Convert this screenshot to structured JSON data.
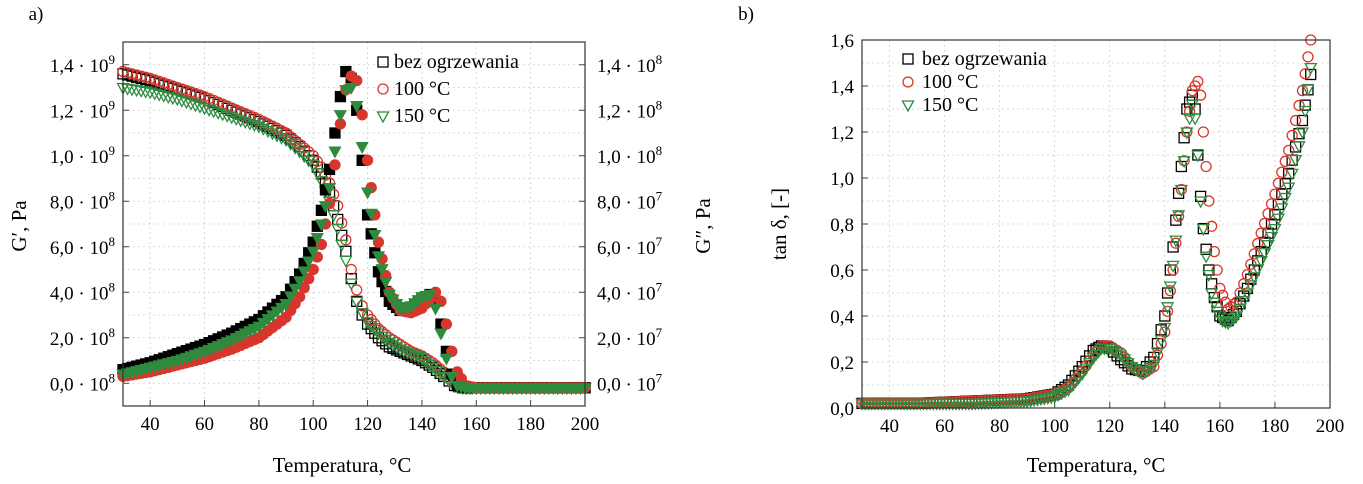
{
  "chart_data": [
    {
      "panel_label": "a)",
      "type": "scatter",
      "xlabel": "Temperatura, °C",
      "ylabel": "G′, Pa",
      "y2label": "G″, Pa",
      "xlim": [
        30,
        200
      ],
      "xticks": [
        40,
        60,
        80,
        100,
        120,
        140,
        160,
        180,
        200
      ],
      "ylim": [
        -100000000.0,
        1500000000.0
      ],
      "yticks": [
        0,
        200000000.0,
        400000000.0,
        600000000.0,
        800000000.0,
        1000000000.0,
        1200000000.0,
        1400000000.0
      ],
      "ytick_labels": [
        {
          "m": "0,0 · 10",
          "e": "8"
        },
        {
          "m": "2,0 · 10",
          "e": "8"
        },
        {
          "m": "4,0 · 10",
          "e": "8"
        },
        {
          "m": "6,0 · 10",
          "e": "8"
        },
        {
          "m": "8,0 · 10",
          "e": "8"
        },
        {
          "m": "1,0 · 10",
          "e": "9"
        },
        {
          "m": "1,2 · 10",
          "e": "9"
        },
        {
          "m": "1,4 · 10",
          "e": "9"
        }
      ],
      "y2lim": [
        -10000000.0,
        150000000.0
      ],
      "y2ticks": [
        0,
        20000000.0,
        40000000.0,
        60000000.0,
        80000000.0,
        100000000.0,
        120000000.0,
        140000000.0
      ],
      "y2tick_labels": [
        {
          "m": "0,0 · 10",
          "e": "7"
        },
        {
          "m": "2,0 · 10",
          "e": "7"
        },
        {
          "m": "4,0 · 10",
          "e": "7"
        },
        {
          "m": "6,0 · 10",
          "e": "7"
        },
        {
          "m": "8,0 · 10",
          "e": "7"
        },
        {
          "m": "1,0 · 10",
          "e": "8"
        },
        {
          "m": "1,2 · 10",
          "e": "8"
        },
        {
          "m": "1,4 · 10",
          "e": "8"
        }
      ],
      "grid": true,
      "legend": "top-right",
      "series": [
        {
          "name": "bez ogrzewania",
          "color": "#000000",
          "marker": "square",
          "storage_G1": {
            "x": [
              30,
              40,
              50,
              60,
              70,
              80,
              90,
              95,
              100,
              103,
              106,
              109,
              112,
              114,
              116,
              118,
              120,
              124,
              128,
              132,
              136,
              140,
              144,
              148,
              150,
              152,
              155,
              158,
              160,
              170,
              180,
              190,
              200
            ],
            "y": [
              1360000000.0,
              1330000000.0,
              1290000000.0,
              1250000000.0,
              1200000000.0,
              1150000000.0,
              1090000000.0,
              1040000000.0,
              980000000.0,
              920000000.0,
              840000000.0,
              720000000.0,
              580000000.0,
              460000000.0,
              360000000.0,
              300000000.0,
              260000000.0,
              200000000.0,
              160000000.0,
              140000000.0,
              120000000.0,
              100000000.0,
              70000000.0,
              30000000.0,
              10000000.0,
              -10000000.0,
              -20000000.0,
              -20000000.0,
              -20000000.0,
              -20000000.0,
              -20000000.0,
              -20000000.0,
              -20000000.0
            ]
          },
          "loss_G2": {
            "x": [
              30,
              40,
              50,
              60,
              70,
              80,
              90,
              95,
              100,
              103,
              106,
              108,
              110,
              112,
              114,
              116,
              118,
              120,
              124,
              128,
              132,
              136,
              140,
              143,
              145,
              147,
              149,
              151,
              153,
              156,
              160,
              170,
              180,
              190,
              200
            ],
            "y": [
              6000000.0,
              9000000.0,
              13000000.0,
              17000000.0,
              22000000.0,
              28000000.0,
              38000000.0,
              48000000.0,
              62000000.0,
              76000000.0,
              94000000.0,
              110000000.0,
              126000000.0,
              137000000.0,
              134000000.0,
              120000000.0,
              98000000.0,
              74000000.0,
              49000000.0,
              36000000.0,
              32000000.0,
              33000000.0,
              37000000.0,
              39000000.0,
              36000000.0,
              26000000.0,
              14000000.0,
              4000000.0,
              -1000000.0,
              -2000000.0,
              -2000000.0,
              -2000000.0,
              -2000000.0,
              -2000000.0,
              -2000000.0
            ]
          }
        },
        {
          "name": "100 °C",
          "color": "#d8362c",
          "marker": "circle",
          "storage_G1": {
            "x": [
              30,
              40,
              50,
              60,
              70,
              80,
              90,
              95,
              100,
              103,
              106,
              109,
              112,
              114,
              116,
              118,
              120,
              124,
              128,
              132,
              136,
              140,
              144,
              148,
              150,
              152,
              155,
              158,
              160,
              170,
              180,
              190,
              200
            ],
            "y": [
              1370000000.0,
              1340000000.0,
              1300000000.0,
              1260000000.0,
              1210000000.0,
              1160000000.0,
              1100000000.0,
              1050000000.0,
              1000000000.0,
              950000000.0,
              880000000.0,
              780000000.0,
              630000000.0,
              500000000.0,
              410000000.0,
              340000000.0,
              300000000.0,
              240000000.0,
              200000000.0,
              170000000.0,
              140000000.0,
              120000000.0,
              90000000.0,
              50000000.0,
              20000000.0,
              0.0,
              -20000000.0,
              -20000000.0,
              -20000000.0,
              -20000000.0,
              -20000000.0,
              -20000000.0,
              -20000000.0
            ]
          },
          "loss_G2": {
            "x": [
              30,
              40,
              50,
              60,
              70,
              80,
              90,
              95,
              100,
              103,
              106,
              108,
              110,
              112,
              114,
              116,
              118,
              120,
              124,
              128,
              132,
              136,
              140,
              143,
              145,
              147,
              149,
              151,
              153,
              156,
              160,
              170,
              180,
              190,
              200
            ],
            "y": [
              3000000.0,
              5000000.0,
              8000000.0,
              11000000.0,
              15000000.0,
              20000000.0,
              29000000.0,
              38000000.0,
              50000000.0,
              61000000.0,
              79000000.0,
              96000000.0,
              114000000.0,
              129000000.0,
              135000000.0,
              133000000.0,
              118000000.0,
              98000000.0,
              62000000.0,
              40000000.0,
              32000000.0,
              31000000.0,
              33000000.0,
              37000000.0,
              40000000.0,
              36000000.0,
              26000000.0,
              14000000.0,
              5000000.0,
              -1000000.0,
              -2000000.0,
              -2000000.0,
              -2000000.0,
              -2000000.0,
              -2000000.0
            ]
          }
        },
        {
          "name": "150 °C",
          "color": "#2e8b3e",
          "marker": "triangle",
          "storage_G1": {
            "x": [
              30,
              40,
              50,
              60,
              70,
              80,
              90,
              95,
              100,
              103,
              106,
              109,
              112,
              114,
              116,
              118,
              120,
              124,
              128,
              132,
              136,
              140,
              144,
              148,
              150,
              152,
              155,
              158,
              160,
              170,
              180,
              190,
              200
            ],
            "y": [
              1300000000.0,
              1280000000.0,
              1250000000.0,
              1210000000.0,
              1170000000.0,
              1130000000.0,
              1070000000.0,
              1020000000.0,
              960000000.0,
              890000000.0,
              800000000.0,
              680000000.0,
              540000000.0,
              440000000.0,
              360000000.0,
              310000000.0,
              270000000.0,
              220000000.0,
              180000000.0,
              150000000.0,
              130000000.0,
              110000000.0,
              70000000.0,
              30000000.0,
              10000000.0,
              -10000000.0,
              -20000000.0,
              -20000000.0,
              -20000000.0,
              -20000000.0,
              -20000000.0,
              -20000000.0,
              -20000000.0
            ]
          },
          "loss_G2": {
            "x": [
              30,
              40,
              50,
              60,
              70,
              80,
              90,
              95,
              100,
              103,
              106,
              108,
              110,
              112,
              114,
              116,
              118,
              120,
              124,
              128,
              132,
              136,
              140,
              143,
              145,
              147,
              149,
              151,
              153,
              156,
              160,
              170,
              180,
              190,
              200
            ],
            "y": [
              4000000.0,
              7000000.0,
              10000000.0,
              14000000.0,
              19000000.0,
              25000000.0,
              35000000.0,
              45000000.0,
              58000000.0,
              70000000.0,
              86000000.0,
              102000000.0,
              118000000.0,
              129000000.0,
              130000000.0,
              122000000.0,
              104000000.0,
              84000000.0,
              56000000.0,
              39000000.0,
              33000000.0,
              34000000.0,
              38000000.0,
              39000000.0,
              33000000.0,
              22000000.0,
              11000000.0,
              3000000.0,
              -1000000.0,
              -2000000.0,
              -2000000.0,
              -2000000.0,
              -2000000.0,
              -2000000.0,
              -2000000.0
            ]
          }
        }
      ]
    },
    {
      "panel_label": "b)",
      "type": "scatter",
      "xlabel": "Temperatura, °C",
      "ylabel": "tan δ, [-]",
      "xlim": [
        30,
        200
      ],
      "xticks": [
        40,
        60,
        80,
        100,
        120,
        140,
        160,
        180,
        200
      ],
      "ylim": [
        0,
        1.6
      ],
      "yticks": [
        0,
        0.2,
        0.4,
        0.6,
        0.8,
        1.0,
        1.2,
        1.4,
        1.6
      ],
      "ytick_labels": [
        "0,0",
        "0,2",
        "0,4",
        "0,6",
        "0,8",
        "1,0",
        "1,2",
        "1,4",
        "1,6"
      ],
      "grid": true,
      "legend": "top-left",
      "series": [
        {
          "name": "bez ogrzewania",
          "color": "#000000",
          "marker": "square",
          "x": [
            30,
            50,
            70,
            90,
            100,
            105,
            110,
            114,
            117,
            120,
            124,
            128,
            132,
            136,
            140,
            143,
            146,
            148,
            150,
            151,
            152,
            153,
            154,
            156,
            158,
            160,
            163,
            166,
            170,
            175,
            180,
            185,
            190,
            193
          ],
          "y": [
            0.02,
            0.02,
            0.03,
            0.04,
            0.06,
            0.1,
            0.18,
            0.25,
            0.27,
            0.26,
            0.21,
            0.17,
            0.16,
            0.22,
            0.4,
            0.7,
            1.05,
            1.3,
            1.36,
            1.3,
            1.1,
            0.92,
            0.78,
            0.6,
            0.48,
            0.4,
            0.38,
            0.42,
            0.52,
            0.68,
            0.84,
            1.02,
            1.25,
            1.45
          ]
        },
        {
          "name": "100 °C",
          "color": "#d8362c",
          "marker": "circle",
          "x": [
            30,
            50,
            70,
            90,
            100,
            105,
            110,
            114,
            117,
            120,
            124,
            128,
            132,
            136,
            140,
            143,
            146,
            148,
            150,
            152,
            153,
            154,
            155,
            156,
            158,
            160,
            163,
            166,
            170,
            175,
            180,
            185,
            190,
            193
          ],
          "y": [
            0.02,
            0.02,
            0.03,
            0.04,
            0.06,
            0.09,
            0.16,
            0.23,
            0.27,
            0.27,
            0.24,
            0.18,
            0.15,
            0.18,
            0.33,
            0.6,
            0.95,
            1.2,
            1.38,
            1.42,
            1.36,
            1.2,
            1.05,
            0.9,
            0.68,
            0.52,
            0.43,
            0.46,
            0.58,
            0.76,
            0.93,
            1.12,
            1.38,
            1.6
          ]
        },
        {
          "name": "150 °C",
          "color": "#2e8b3e",
          "marker": "triangle",
          "x": [
            30,
            50,
            70,
            90,
            100,
            105,
            110,
            114,
            117,
            120,
            124,
            128,
            132,
            136,
            140,
            143,
            146,
            148,
            150,
            151,
            152,
            153,
            155,
            157,
            159,
            161,
            163,
            166,
            170,
            175,
            180,
            185,
            190,
            193
          ],
          "y": [
            0.02,
            0.02,
            0.02,
            0.03,
            0.05,
            0.08,
            0.15,
            0.22,
            0.26,
            0.26,
            0.23,
            0.18,
            0.15,
            0.19,
            0.35,
            0.62,
            0.95,
            1.2,
            1.32,
            1.26,
            1.1,
            0.9,
            0.66,
            0.5,
            0.42,
            0.38,
            0.37,
            0.4,
            0.5,
            0.64,
            0.78,
            0.96,
            1.2,
            1.48
          ]
        }
      ]
    }
  ]
}
